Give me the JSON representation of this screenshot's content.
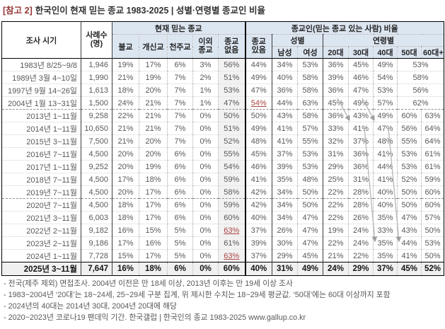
{
  "title": {
    "tag": "[참고 2]",
    "text": "한국인이 현재 믿는 종교 1983-2025 | 성별·연령별 종교인 비율"
  },
  "table": {
    "headers": {
      "survey_time": "조사 시기",
      "sample_size": "사례수\n(명)",
      "current_religion_group": "현재 믿는 종교",
      "religious_group": "종교인(믿는 종교 있는 사람) 비율",
      "buddhism": "불교",
      "protestant": "개신교",
      "catholic": "천주교",
      "other_religion": "이외\n종교",
      "no_religion": "종교\n없음",
      "has_religion": "종교\n있음",
      "gender_group": "성별",
      "age_group": "연령별",
      "male": "남성",
      "female": "여성",
      "age20": "20대",
      "age30": "30대",
      "age40": "40대",
      "age50": "50대",
      "age60": "60대+"
    },
    "rows": [
      {
        "period": "1983년 8/25~9/8",
        "n": "1,946",
        "vals": [
          "19%",
          "17%",
          "6%",
          "3%",
          "56%",
          "44%",
          "34%",
          "53%",
          "36%",
          "45%",
          "49%",
          "53%"
        ],
        "merged": true
      },
      {
        "period": "1989년 3월 4~10일",
        "n": "1,990",
        "vals": [
          "21%",
          "19%",
          "7%",
          "2%",
          "51%",
          "49%",
          "40%",
          "58%",
          "39%",
          "46%",
          "54%",
          "58%"
        ],
        "merged": true
      },
      {
        "period": "1997년 9월 14~26일",
        "n": "1,613",
        "vals": [
          "18%",
          "20%",
          "7%",
          "1%",
          "53%",
          "47%",
          "36%",
          "58%",
          "36%",
          "47%",
          "53%",
          "56%"
        ],
        "merged": true
      },
      {
        "period": "2004년 1월 13~31일",
        "n": "1,500",
        "vals": [
          "24%",
          "21%",
          "7%",
          "1%",
          "47%",
          "54%",
          "44%",
          "63%",
          "45%",
          "49%",
          "57%",
          "62%"
        ],
        "merged": true,
        "red_has": true,
        "section_end": true
      },
      {
        "period": "2013년 1~11월",
        "n": "9,258",
        "vals": [
          "22%",
          "21%",
          "7%",
          "0%",
          "50%",
          "50%",
          "43%",
          "58%",
          "36%",
          "43%",
          "49%",
          "60%",
          "63%"
        ]
      },
      {
        "period": "2014년 1~11월",
        "n": "10,650",
        "vals": [
          "21%",
          "21%",
          "7%",
          "0%",
          "51%",
          "49%",
          "41%",
          "57%",
          "33%",
          "41%",
          "47%",
          "56%",
          "64%"
        ]
      },
      {
        "period": "2015년 3~11월",
        "n": "7,500",
        "vals": [
          "21%",
          "20%",
          "7%",
          "0%",
          "52%",
          "48%",
          "41%",
          "55%",
          "32%",
          "37%",
          "48%",
          "55%",
          "64%"
        ]
      },
      {
        "period": "2016년 7~11월",
        "n": "4,500",
        "vals": [
          "20%",
          "20%",
          "6%",
          "0%",
          "55%",
          "45%",
          "37%",
          "53%",
          "31%",
          "36%",
          "41%",
          "53%",
          "61%"
        ]
      },
      {
        "period": "2017년 1~11월",
        "n": "9,252",
        "vals": [
          "20%",
          "19%",
          "6%",
          "0%",
          "54%",
          "46%",
          "39%",
          "53%",
          "29%",
          "36%",
          "44%",
          "53%",
          "61%"
        ]
      },
      {
        "period": "2018년 7~11월",
        "n": "4,500",
        "vals": [
          "17%",
          "18%",
          "6%",
          "0%",
          "59%",
          "41%",
          "35%",
          "48%",
          "25%",
          "31%",
          "41%",
          "52%",
          "59%"
        ]
      },
      {
        "period": "2019년 7~11월",
        "n": "4,500",
        "vals": [
          "20%",
          "17%",
          "6%",
          "0%",
          "58%",
          "42%",
          "34%",
          "50%",
          "22%",
          "28%",
          "40%",
          "50%",
          "60%"
        ],
        "section_end": true
      },
      {
        "period": "2020년 7~11월",
        "n": "4,500",
        "vals": [
          "18%",
          "17%",
          "6%",
          "0%",
          "59%",
          "42%",
          "34%",
          "50%",
          "22%",
          "28%",
          "40%",
          "50%",
          "60%"
        ]
      },
      {
        "period": "2021년 3~11월",
        "n": "6,003",
        "vals": [
          "18%",
          "17%",
          "6%",
          "0%",
          "60%",
          "40%",
          "34%",
          "47%",
          "22%",
          "26%",
          "35%",
          "47%",
          "57%"
        ]
      },
      {
        "period": "2022년 2~11월",
        "n": "9,182",
        "vals": [
          "16%",
          "15%",
          "5%",
          "0%",
          "63%",
          "37%",
          "26%",
          "47%",
          "19%",
          "24%",
          "33%",
          "43%",
          "50%"
        ],
        "red_none": true
      },
      {
        "period": "2023년 2~11월",
        "n": "9,186",
        "vals": [
          "17%",
          "16%",
          "5%",
          "0%",
          "61%",
          "39%",
          "30%",
          "47%",
          "22%",
          "24%",
          "35%",
          "44%",
          "53%"
        ]
      },
      {
        "period": "2024년 1~11월",
        "n": "7,728",
        "vals": [
          "15%",
          "17%",
          "5%",
          "0%",
          "63%",
          "37%",
          "29%",
          "45%",
          "21%",
          "22%",
          "35%",
          "41%",
          "50%"
        ],
        "red_none": true
      },
      {
        "period": "2025년 3~11월",
        "n": "7,647",
        "vals": [
          "16%",
          "18%",
          "6%",
          "0%",
          "60%",
          "40%",
          "31%",
          "49%",
          "24%",
          "29%",
          "37%",
          "45%",
          "52%"
        ],
        "total": true
      }
    ]
  },
  "footnotes": [
    "- 전국(제주 제외) 면접조사. 2004년 이전은 만 18세 이상, 2013년 이후는 만 19세 이상 조사",
    "- 1983~2004년 ‘20대’는 18~24세, 25~29세 구분 집계, 위 제시한 수치는 18~29세 평균값. ‘50대’에는 60대 이상까지 포함",
    "- 2024년의 40대는 2014년 30대, 2004년 20대에 해당",
    "- 2020~2023년 코로나19 팬데믹 기간. 한국갤럽 | 한국인의 종교 1983-2025 www.gallup.co.kr"
  ]
}
